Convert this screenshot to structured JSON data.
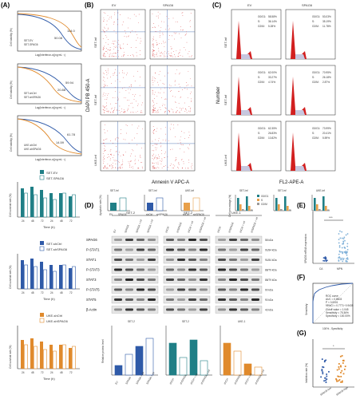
{
  "figure": {
    "panel_labels": [
      "(A)",
      "(B)",
      "(C)",
      "(D)",
      "(E)",
      "(F)",
      "(G)"
    ],
    "panelA": {
      "curve_ylabel": "Cell viability (%)",
      "curve_xlabel": "Log(Interferon-α)(ng·mL⁻¹)",
      "curves": [
        {
          "series": [
            "SET-EV",
            "SET-SPAG6"
          ],
          "ic50": [
            "50.08",
            "114.0"
          ]
        },
        {
          "series": [
            "SET-shCtrl",
            "SET-shSPAG6"
          ],
          "ic50": [
            "59.94",
            "20.88"
          ]
        },
        {
          "series": [
            "UKE-shCtrl",
            "UKE-shSPAG6"
          ],
          "ic50": [
            "61.78",
            "14.59"
          ]
        }
      ],
      "survival_ylabel": "Cell survival rate (%)",
      "survival_xlabel": "Time (h)",
      "time_ticks": [
        "24",
        "48",
        "72",
        "24",
        "48",
        "72"
      ],
      "survival_legends": [
        [
          "SET-EV",
          "SET-SPAG6"
        ],
        [
          "SET-shCtrl",
          "SET-shSPAG6"
        ],
        [
          "UKE-shCtrl",
          "UKE-shSPAG6"
        ]
      ]
    },
    "panelB": {
      "col_labels": [
        "EV",
        "SPAG6"
      ],
      "col_labels_mid": [
        "shCtrl",
        "shSPAG6"
      ],
      "row_labels": [
        "SET-inf",
        "SET-inf",
        "UKE-inf"
      ],
      "ylabel": "DAPI PB 450-A",
      "xlabel": "Annexin V APC-A",
      "bar_titles": [
        "SET-inf",
        "SET-inf",
        "UKE-inf"
      ],
      "bar_ylabel": "Apoptotic rate (%)",
      "bar_x": [
        [
          "EV",
          "SPAG6"
        ],
        [
          "shCtrl",
          "shSPAG6"
        ],
        [
          "shCtrl",
          "shSPAG6"
        ]
      ]
    },
    "panelC": {
      "col_labels": [
        "EV",
        "SPAG6"
      ],
      "col_labels_mid": [
        "shCtrl",
        "shSPAG6"
      ],
      "row_labels": [
        "SET-inf",
        "SET-inf",
        "UKE-inf"
      ],
      "ylabel": "Number",
      "xlabel": "FL2-APE-A",
      "stats": [
        [
          [
            "G0/G1:",
            "58.58%",
            "S:",
            "36.14%",
            "G2/M:",
            "5.28%"
          ],
          [
            "G0/G1:",
            "53.03%",
            "S:",
            "35.19%",
            "G2/M:",
            "11.78%"
          ]
        ],
        [
          [
            "G0/G1:",
            "62.00%",
            "S:",
            "33.27%",
            "G2/M:",
            "4.74%"
          ],
          [
            "G0/G1:",
            "70.95%",
            "S:",
            "26.18%",
            "G2/M:",
            "2.87%"
          ]
        ],
        [
          [
            "G0/G1:",
            "62.35%",
            "S:",
            "26.83%",
            "G2/M:",
            "10.82%"
          ],
          [
            "G0/G1:",
            "73.99%",
            "S:",
            "20.41%",
            "G2/M:",
            "5.59%"
          ]
        ]
      ],
      "bar_titles": [
        "SET-inf",
        "SET-inf",
        "UKE-inf"
      ],
      "bar_ylabel": "Cell percentage (%)",
      "bar_legend": [
        "G0/G1",
        "S",
        "G2/M"
      ]
    },
    "panelD": {
      "group_titles": [
        "SET-2",
        "SET-2",
        "UKE-1"
      ],
      "lanes_g1": [
        "EV",
        "SPAG6",
        "SPAG6 + inf",
        "SPAG6 + inf"
      ],
      "lanes_g2": [
        "shCtrl",
        "shSPAG6",
        "shCtrl + inf",
        "shSPAG6 + inf"
      ],
      "lanes_g3": [
        "shCtrl",
        "shSPAG6",
        "shCtrl + inf",
        "shSPAG6 + inf"
      ],
      "proteins": [
        "SPAG6",
        "P-STAT1",
        "STAT1",
        "P-STAT3",
        "STAT3",
        "P-STAT5",
        "STAT5",
        "β-Actin"
      ],
      "sizes": [
        "58 kDa",
        "91/84 kDa",
        "91/84 kDa",
        "88/79 kDa",
        "88/79 kDa",
        "90 kDa",
        "90 kDa",
        "43 kDa"
      ],
      "bar_titles": [
        "SET-2",
        "SET-2",
        "UKE-1"
      ],
      "bar_ylabel": "Relative protein level"
    },
    "panelE": {
      "ylabel": "SPAG6 mRNA expression",
      "x": [
        "CA",
        "MPN"
      ],
      "sig": "***"
    },
    "panelF": {
      "ylabel": "Sensitivity",
      "xlabel": "100% - Specificity",
      "roc_text": [
        "ROC curve",
        "AUC = 0.8603",
        "P < 0.0001",
        "95%CI = 0.7771~0.9435",
        "Cutoff value = 1.045",
        "Sensitivity = 75.36%",
        "Specificity = 100.00%"
      ]
    },
    "panelG": {
      "ylabel": "Inhibition rate (%)",
      "x": [
        "SPAG6-low",
        "SPAG6-high"
      ],
      "sig": "*"
    },
    "colors": {
      "blue": "#2f5aa8",
      "orange": "#e08a2c",
      "teal": "#1f7f86",
      "gold": "#e8a04a",
      "red": "#d21f1f",
      "grey": "#9a9a9a",
      "blotbg": "#e6e6e6"
    }
  }
}
